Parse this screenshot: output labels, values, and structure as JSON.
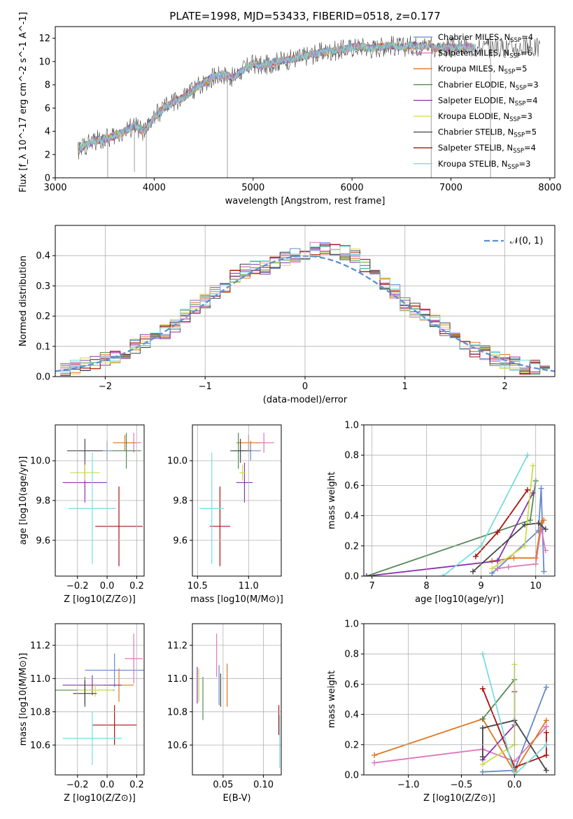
{
  "figure": {
    "title": "PLATE=1998, MJD=53433, FIBERID=0518, z=0.177"
  },
  "series_styles": [
    {
      "name": "Chabrier MILES",
      "nssp": "4",
      "color": "#6688cc"
    },
    {
      "name": "Salpeter MILES",
      "nssp": "6",
      "color": "#dd77bb"
    },
    {
      "name": "Kroupa MILES",
      "nssp": "5",
      "color": "#dd7722"
    },
    {
      "name": "Chabrier ELODIE",
      "nssp": "3",
      "color": "#558855"
    },
    {
      "name": "Salpeter ELODIE",
      "nssp": "4",
      "color": "#8833aa"
    },
    {
      "name": "Kroupa ELODIE",
      "nssp": "3",
      "color": "#ccdd44"
    },
    {
      "name": "Chabrier STELIB",
      "nssp": "5",
      "color": "#444444"
    },
    {
      "name": "Salpeter STELIB",
      "nssp": "4",
      "color": "#aa1111"
    },
    {
      "name": "Kroupa STELIB",
      "nssp": "3",
      "color": "#77dddd"
    }
  ],
  "chart_data": [
    {
      "id": "spectrum",
      "type": "line",
      "xlabel": "wavelength [Angstrom, rest frame]",
      "ylabel": "Flux [f_λ 10^-17 erg cm^-2 s^-1 A^-1]",
      "xlim": [
        3000,
        8050
      ],
      "ylim": [
        0,
        13
      ],
      "xticks": [
        "3000",
        "4000",
        "5000",
        "6000",
        "7000",
        "8000"
      ],
      "yticks": [
        "0",
        "2",
        "4",
        "6",
        "8",
        "10",
        "12"
      ],
      "data_x": [
        3230,
        3300,
        3400,
        3500,
        3600,
        3700,
        3800,
        3900,
        4000,
        4100,
        4200,
        4300,
        4400,
        4500,
        4600,
        4700,
        4800,
        4900,
        5000,
        5100,
        5200,
        5300,
        5400,
        5500,
        5600,
        5700,
        5800,
        5900,
        6000,
        6100,
        6200,
        6300,
        6400,
        6500,
        6600,
        6700,
        6800
      ],
      "data_y": [
        2.3,
        2.8,
        3.2,
        3.3,
        3.6,
        4.0,
        4.5,
        3.9,
        5.2,
        6.0,
        6.5,
        6.9,
        7.6,
        8.2,
        8.7,
        8.9,
        8.6,
        9.3,
        9.8,
        9.6,
        9.9,
        10.1,
        10.2,
        10.4,
        10.6,
        10.8,
        10.9,
        11.0,
        11.2,
        11.3,
        11.1,
        11.3,
        11.4,
        11.2,
        11.4,
        11.3,
        11.5
      ],
      "grid": false,
      "legend": "upper right"
    },
    {
      "id": "residual-histogram",
      "type": "line",
      "xlabel": "(data-model)/error",
      "ylabel": "Normed distribution",
      "xlim": [
        -2.5,
        2.5
      ],
      "ylim": [
        0,
        0.5
      ],
      "xticks": [
        "−2",
        "−1",
        "0",
        "1",
        "2"
      ],
      "yticks": [
        "0.0",
        "0.1",
        "0.2",
        "0.3",
        "0.4"
      ],
      "bin_centers": [
        -2.4,
        -2.3,
        -2.2,
        -2.1,
        -2.0,
        -1.9,
        -1.8,
        -1.7,
        -1.6,
        -1.5,
        -1.4,
        -1.3,
        -1.2,
        -1.1,
        -1.0,
        -0.9,
        -0.8,
        -0.7,
        -0.6,
        -0.5,
        -0.4,
        -0.3,
        -0.2,
        -0.1,
        0.0,
        0.1,
        0.2,
        0.3,
        0.4,
        0.5,
        0.6,
        0.7,
        0.8,
        0.9,
        1.0,
        1.1,
        1.2,
        1.3,
        1.4,
        1.5,
        1.6,
        1.7,
        1.8,
        1.9,
        2.0,
        2.1,
        2.2,
        2.3,
        2.4
      ],
      "hist_values": [
        0.02,
        0.03,
        0.04,
        0.05,
        0.06,
        0.06,
        0.08,
        0.1,
        0.12,
        0.13,
        0.15,
        0.17,
        0.2,
        0.23,
        0.25,
        0.28,
        0.3,
        0.33,
        0.35,
        0.36,
        0.36,
        0.38,
        0.39,
        0.4,
        0.41,
        0.42,
        0.42,
        0.42,
        0.41,
        0.4,
        0.37,
        0.35,
        0.31,
        0.28,
        0.24,
        0.22,
        0.2,
        0.18,
        0.16,
        0.13,
        0.1,
        0.09,
        0.08,
        0.06,
        0.05,
        0.04,
        0.03,
        0.03,
        0.03
      ],
      "normal_label": "𝒩(0, 1)",
      "grid": true,
      "legend": "upper right"
    },
    {
      "id": "age-vs-Z",
      "type": "scatter",
      "xlabel": "Z [log10(Z/Z⊙)]",
      "ylabel": "age  [log10(age/yr)]",
      "xlim": [
        -0.35,
        0.25
      ],
      "ylim": [
        9.42,
        10.18
      ],
      "xticks": [
        "−0.2",
        "0.0",
        "0.2"
      ],
      "yticks": [
        "9.6",
        "9.8",
        "10.0"
      ],
      "points": [
        {
          "x": 0.0,
          "y": 10.05,
          "xerr": 0.2,
          "yerr": 0.05
        },
        {
          "x": 0.18,
          "y": 10.09,
          "xerr": 0.05,
          "yerr": 0.05
        },
        {
          "x": 0.12,
          "y": 10.09,
          "xerr": 0.08,
          "yerr": 0.04
        },
        {
          "x": 0.13,
          "y": 10.05,
          "xerr": 0.1,
          "yerr": 0.09
        },
        {
          "x": -0.15,
          "y": 9.89,
          "xerr": 0.15,
          "yerr": 0.1
        },
        {
          "x": -0.15,
          "y": 9.94,
          "xerr": 0.1,
          "yerr": 0.04
        },
        {
          "x": -0.15,
          "y": 10.05,
          "xerr": 0.12,
          "yerr": 0.06
        },
        {
          "x": 0.08,
          "y": 9.67,
          "xerr": 0.16,
          "yerr": 0.2
        },
        {
          "x": -0.1,
          "y": 9.76,
          "xerr": 0.16,
          "yerr": 0.28
        }
      ],
      "grid": true
    },
    {
      "id": "age-vs-mass",
      "type": "scatter",
      "xlabel": "mass [log10(M/M⊙)]",
      "ylabel": "",
      "xlim": [
        10.45,
        11.32
      ],
      "ylim": [
        9.42,
        10.18
      ],
      "xticks": [
        "10.5",
        "11.0"
      ],
      "yticks": [
        "9.6",
        "9.8",
        "10.0"
      ],
      "points": [
        {
          "x": 11.02,
          "y": 10.05,
          "xerr": 0.1,
          "yerr": 0.05
        },
        {
          "x": 11.15,
          "y": 10.09,
          "xerr": 0.1,
          "yerr": 0.05
        },
        {
          "x": 11.0,
          "y": 10.09,
          "xerr": 0.12,
          "yerr": 0.04
        },
        {
          "x": 10.9,
          "y": 10.05,
          "xerr": 0.05,
          "yerr": 0.09
        },
        {
          "x": 10.96,
          "y": 9.89,
          "xerr": 0.08,
          "yerr": 0.1
        },
        {
          "x": 10.94,
          "y": 9.94,
          "xerr": 0.03,
          "yerr": 0.04
        },
        {
          "x": 10.92,
          "y": 10.05,
          "xerr": 0.1,
          "yerr": 0.06
        },
        {
          "x": 10.72,
          "y": 9.67,
          "xerr": 0.1,
          "yerr": 0.2
        },
        {
          "x": 10.64,
          "y": 9.76,
          "xerr": 0.12,
          "yerr": 0.28
        }
      ],
      "grid": true
    },
    {
      "id": "mass-weight-vs-age",
      "type": "line",
      "xlabel": "age  [log10(age/yr)]",
      "ylabel": "mass weight",
      "xlim": [
        6.85,
        10.35
      ],
      "ylim": [
        0,
        1.0
      ],
      "xticks": [
        "7",
        "8",
        "9",
        "10"
      ],
      "yticks": [
        "0.0",
        "0.2",
        "0.4",
        "0.6",
        "0.8",
        "1.0"
      ],
      "series": [
        {
          "x": [
            9.2,
            9.3,
            10.05,
            10.1,
            10.15
          ],
          "y": [
            0.02,
            0.05,
            0.3,
            0.58,
            0.03
          ]
        },
        {
          "x": [
            9.3,
            9.5,
            10.0,
            10.1,
            10.18
          ],
          "y": [
            0.05,
            0.06,
            0.08,
            0.32,
            0.17
          ]
        },
        {
          "x": [
            9.2,
            9.6,
            10.0,
            10.1,
            10.15
          ],
          "y": [
            0.1,
            0.12,
            0.12,
            0.35,
            0.37
          ]
        },
        {
          "x": [
            6.9,
            9.9,
            10.0
          ],
          "y": [
            0.0,
            0.37,
            0.63
          ]
        },
        {
          "x": [
            6.9,
            9.3,
            9.95
          ],
          "y": [
            0.0,
            0.1,
            0.55
          ]
        },
        {
          "x": [
            9.2,
            9.8,
            9.95
          ],
          "y": [
            0.05,
            0.2,
            0.73
          ]
        },
        {
          "x": [
            8.85,
            9.8,
            10.05,
            10.18
          ],
          "y": [
            0.03,
            0.34,
            0.35,
            0.31
          ]
        },
        {
          "x": [
            8.9,
            9.3,
            9.85
          ],
          "y": [
            0.13,
            0.29,
            0.57
          ]
        },
        {
          "x": [
            8.3,
            9.0,
            9.85
          ],
          "y": [
            0.0,
            0.2,
            0.8
          ]
        }
      ],
      "grid": true
    },
    {
      "id": "mass-vs-Z",
      "type": "scatter",
      "xlabel": "Z [log10(Z/Z⊙)]",
      "ylabel": "mass [log10(M/M⊙)]",
      "xlim": [
        -0.35,
        0.25
      ],
      "ylim": [
        10.42,
        11.33
      ],
      "xticks": [
        "−0.2",
        "0.0",
        "0.2"
      ],
      "yticks": [
        "10.6",
        "10.8",
        "11.0",
        "11.2"
      ],
      "points": [
        {
          "x": 0.05,
          "y": 11.05,
          "xerr": 0.2,
          "yerr": 0.1
        },
        {
          "x": 0.18,
          "y": 11.12,
          "xerr": 0.06,
          "yerr": 0.15
        },
        {
          "x": 0.08,
          "y": 10.96,
          "xerr": 0.1,
          "yerr": 0.1
        },
        {
          "x": -0.15,
          "y": 10.93,
          "xerr": 0.2,
          "yerr": 0.08
        },
        {
          "x": -0.1,
          "y": 10.96,
          "xerr": 0.2,
          "yerr": 0.06
        },
        {
          "x": -0.08,
          "y": 10.93,
          "xerr": 0.12,
          "yerr": 0.04
        },
        {
          "x": -0.15,
          "y": 10.91,
          "xerr": 0.08,
          "yerr": 0.08
        },
        {
          "x": 0.05,
          "y": 10.72,
          "xerr": 0.15,
          "yerr": 0.12
        },
        {
          "x": -0.1,
          "y": 10.64,
          "xerr": 0.2,
          "yerr": 0.16
        }
      ],
      "grid": true
    },
    {
      "id": "mass-vs-EBV",
      "type": "scatter",
      "xlabel": "E(B-V)",
      "ylabel": "",
      "xlim": [
        0.012,
        0.122
      ],
      "ylim": [
        10.42,
        11.33
      ],
      "xticks": [
        "0.05",
        "0.10"
      ],
      "yticks": [
        "10.6",
        "10.8",
        "11.0",
        "11.2"
      ],
      "points": [
        {
          "x": 0.045,
          "y": 10.96,
          "yerr": 0.12
        },
        {
          "x": 0.042,
          "y": 11.14,
          "yerr": 0.13
        },
        {
          "x": 0.055,
          "y": 10.96,
          "yerr": 0.13
        },
        {
          "x": 0.025,
          "y": 10.88,
          "yerr": 0.13
        },
        {
          "x": 0.018,
          "y": 10.96,
          "yerr": 0.11
        },
        {
          "x": 0.02,
          "y": 10.96,
          "yerr": 0.1
        },
        {
          "x": 0.047,
          "y": 10.93,
          "yerr": 0.1
        },
        {
          "x": 0.119,
          "y": 10.75,
          "yerr": 0.09
        },
        {
          "x": 0.12,
          "y": 10.62,
          "yerr": 0.16
        }
      ],
      "grid": true
    },
    {
      "id": "mass-weight-vs-Z",
      "type": "line",
      "xlabel": "Z [log10(Z/Z⊙)]",
      "ylabel": "mass weight",
      "xlim": [
        -1.42,
        0.38
      ],
      "ylim": [
        0,
        1.0
      ],
      "xticks": [
        "−1.0",
        "−0.5",
        "0.0"
      ],
      "yticks": [
        "0.0",
        "0.2",
        "0.4",
        "0.6",
        "0.8",
        "1.0"
      ],
      "series": [
        {
          "x": [
            -0.3,
            0.0,
            0.3
          ],
          "y": [
            0.02,
            0.03,
            0.58
          ]
        },
        {
          "x": [
            -1.32,
            -0.3,
            0.0,
            0.3
          ],
          "y": [
            0.08,
            0.17,
            0.09,
            0.32
          ]
        },
        {
          "x": [
            -1.32,
            -0.3,
            0.0,
            0.3
          ],
          "y": [
            0.13,
            0.37,
            0.02,
            0.36
          ]
        },
        {
          "x": [
            -0.3,
            0.0
          ],
          "y": [
            0.37,
            0.63
          ]
        },
        {
          "x": [
            -0.3,
            0.0,
            0.0
          ],
          "y": [
            0.1,
            0.33,
            0.55
          ]
        },
        {
          "x": [
            -0.3,
            0.0,
            0.0
          ],
          "y": [
            0.07,
            0.2,
            0.73
          ]
        },
        {
          "x": [
            -0.3,
            -0.3,
            0.0,
            0.3
          ],
          "y": [
            0.12,
            0.31,
            0.36,
            0.03
          ]
        },
        {
          "x": [
            -0.3,
            0.0,
            0.3,
            0.3
          ],
          "y": [
            0.57,
            0.05,
            0.13,
            0.28
          ]
        },
        {
          "x": [
            -0.3,
            0.0,
            0.3
          ],
          "y": [
            0.8,
            0.0,
            0.2
          ]
        }
      ],
      "grid": true
    }
  ]
}
